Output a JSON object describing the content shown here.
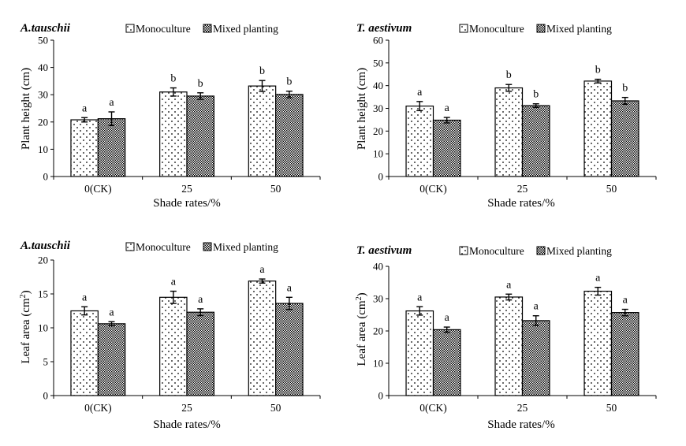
{
  "chart_data": [
    {
      "type": "bar",
      "title": "A.tauschii",
      "xlabel": "Shade rates/%",
      "ylabel": "Plant height (cm)",
      "ylabel_sup": "",
      "ylim": [
        0,
        50
      ],
      "yticks": [
        0,
        10,
        20,
        30,
        40,
        50
      ],
      "categories": [
        "0(CK)",
        "25",
        "50"
      ],
      "series": [
        {
          "name": "Monoculture",
          "values": [
            20.8,
            31.0,
            33.2
          ],
          "errors": [
            0.8,
            1.5,
            2.0
          ],
          "letters": [
            "a",
            "b",
            "b"
          ]
        },
        {
          "name": "Mixed planting",
          "values": [
            21.2,
            29.5,
            30.1
          ],
          "errors": [
            2.5,
            1.2,
            1.2
          ],
          "letters": [
            "a",
            "b",
            "b"
          ]
        }
      ]
    },
    {
      "type": "bar",
      "title": "T. aestivum",
      "xlabel": "Shade rates/%",
      "ylabel": "Plant height (cm)",
      "ylabel_sup": "",
      "ylim": [
        0,
        60
      ],
      "yticks": [
        0,
        10,
        20,
        30,
        40,
        50,
        60
      ],
      "categories": [
        "0(CK)",
        "25",
        "50"
      ],
      "series": [
        {
          "name": "Monoculture",
          "values": [
            31.0,
            39.0,
            42.0
          ],
          "errors": [
            2.0,
            1.5,
            0.8
          ],
          "letters": [
            "a",
            "b",
            "b"
          ]
        },
        {
          "name": "Mixed planting",
          "values": [
            24.8,
            31.2,
            33.3
          ],
          "errors": [
            1.2,
            0.8,
            1.5
          ],
          "letters": [
            "a",
            "b",
            "b"
          ]
        }
      ]
    },
    {
      "type": "bar",
      "title": "A.tauschii",
      "xlabel": "Shade rates/%",
      "ylabel": "Leaf area (cm",
      "ylabel_sup": "2",
      "ylabel_close": ")",
      "ylim": [
        0,
        20
      ],
      "yticks": [
        0,
        5,
        10,
        15,
        20
      ],
      "categories": [
        "0(CK)",
        "25",
        "50"
      ],
      "series": [
        {
          "name": "Monoculture",
          "values": [
            12.5,
            14.5,
            16.9
          ],
          "errors": [
            0.6,
            0.9,
            0.3
          ],
          "letters": [
            "a",
            "a",
            "a"
          ]
        },
        {
          "name": "Mixed planting",
          "values": [
            10.6,
            12.3,
            13.6
          ],
          "errors": [
            0.3,
            0.5,
            0.9
          ],
          "letters": [
            "a",
            "a",
            "a"
          ]
        }
      ]
    },
    {
      "type": "bar",
      "title": "T. aestivum",
      "xlabel": "Shade rates/%",
      "ylabel": "Leaf area (cm",
      "ylabel_sup": "2",
      "ylabel_close": ")",
      "ylim": [
        0,
        40
      ],
      "yticks": [
        0,
        10,
        20,
        30,
        40
      ],
      "categories": [
        "0(CK)",
        "25",
        "50"
      ],
      "series": [
        {
          "name": "Monoculture",
          "values": [
            26.2,
            30.5,
            32.3
          ],
          "errors": [
            1.3,
            0.9,
            1.2
          ],
          "letters": [
            "a",
            "a",
            "a"
          ]
        },
        {
          "name": "Mixed planting",
          "values": [
            20.4,
            23.2,
            25.7
          ],
          "errors": [
            0.8,
            1.5,
            1.0
          ],
          "letters": [
            "a",
            "a",
            "a"
          ]
        }
      ]
    }
  ],
  "colors": {
    "bar_outline": "#000000",
    "background": "#ffffff",
    "dots": "#000000"
  }
}
